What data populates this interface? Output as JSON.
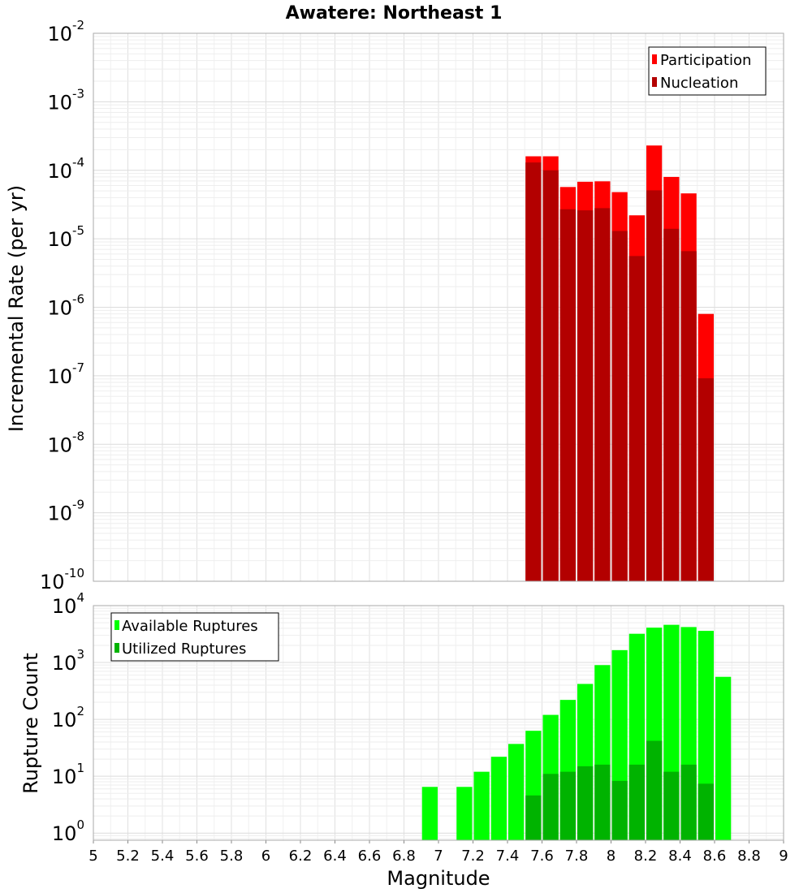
{
  "chart_data": [
    {
      "type": "bar",
      "title": "Awatere: Northeast 1",
      "xlabel": "",
      "ylabel": "Incremental Rate (per yr)",
      "yscale": "log",
      "ylim": [
        1e-10,
        0.01
      ],
      "xlim": [
        5,
        9
      ],
      "bar_width": 0.1,
      "grid": true,
      "legend": "top-right",
      "y_tick_exponents": [
        "-10",
        "-9",
        "-8",
        "-7",
        "-6",
        "-5",
        "-4",
        "-3",
        "-2"
      ],
      "x": [
        7.55,
        7.65,
        7.75,
        7.85,
        7.95,
        8.05,
        8.15,
        8.25,
        8.35,
        8.45,
        8.55
      ],
      "series": [
        {
          "name": "Participation",
          "color": "#ff0000",
          "values": [
            0.00016,
            0.00016,
            5.7e-05,
            6.8e-05,
            6.9e-05,
            4.8e-05,
            2.2e-05,
            0.00023,
            8e-05,
            4.6e-05,
            8e-07
          ]
        },
        {
          "name": "Nucleation",
          "color": "#b30000",
          "values": [
            0.00013,
            0.0001,
            2.7e-05,
            2.6e-05,
            2.8e-05,
            1.3e-05,
            5.6e-06,
            5.1e-05,
            1.4e-05,
            6.6e-06,
            9.2e-08
          ]
        }
      ]
    },
    {
      "type": "bar",
      "title": "",
      "xlabel": "Magnitude",
      "ylabel": "Rupture Count",
      "yscale": "log",
      "ylim": [
        0.75,
        10000
      ],
      "xlim": [
        5,
        9
      ],
      "bar_width": 0.1,
      "grid": true,
      "legend": "top-left",
      "y_tick_exponents": [
        "0",
        "1",
        "2",
        "3",
        "4"
      ],
      "x_tick_labels": [
        "5",
        "5.2",
        "5.4",
        "5.6",
        "5.8",
        "6",
        "6.2",
        "6.4",
        "6.6",
        "6.8",
        "7",
        "7.2",
        "7.4",
        "7.6",
        "7.8",
        "8",
        "8.2",
        "8.4",
        "8.6",
        "8.8",
        "9"
      ],
      "series": [
        {
          "name": "Available Ruptures",
          "color": "#00ff00",
          "x": [
            6.95,
            7.15,
            7.25,
            7.35,
            7.45,
            7.55,
            7.65,
            7.75,
            7.85,
            7.95,
            8.05,
            8.15,
            8.25,
            8.35,
            8.45,
            8.55,
            8.65
          ],
          "values": [
            6.5,
            6.5,
            12,
            22,
            37,
            63,
            120,
            220,
            420,
            900,
            1650,
            3200,
            4100,
            4600,
            4200,
            3600,
            560
          ]
        },
        {
          "name": "Utilized Ruptures",
          "color": "#00b300",
          "x": [
            7.55,
            7.65,
            7.75,
            7.85,
            7.95,
            8.05,
            8.15,
            8.25,
            8.35,
            8.45,
            8.55
          ],
          "values": [
            4.6,
            11,
            12,
            15,
            16,
            8.3,
            16,
            42,
            12,
            16,
            7.4
          ]
        }
      ]
    }
  ]
}
